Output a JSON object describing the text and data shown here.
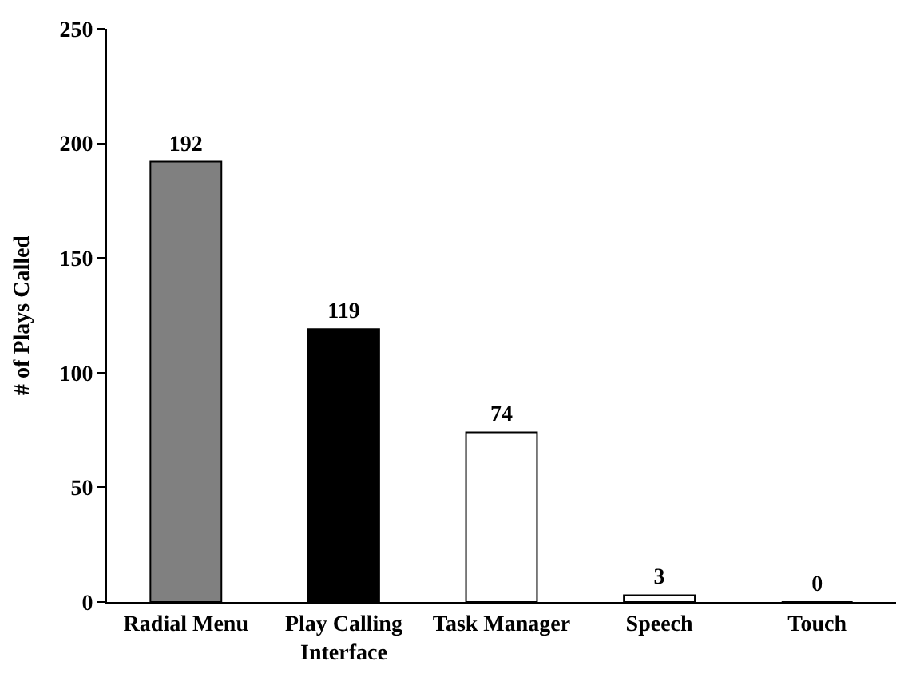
{
  "chart_data": {
    "type": "bar",
    "ylabel": "# of Plays Called",
    "categories": [
      "Radial Menu",
      "Play Calling Interface",
      "Task Manager",
      "Speech",
      "Touch"
    ],
    "values": [
      192,
      119,
      74,
      3,
      0
    ],
    "colors": [
      "#808080",
      "#000000",
      "#ffffff",
      "#ffffff",
      "#ffffff"
    ],
    "ylim": [
      0,
      250
    ],
    "yticks": [
      0,
      50,
      100,
      150,
      200,
      250
    ],
    "data_labels": true
  }
}
